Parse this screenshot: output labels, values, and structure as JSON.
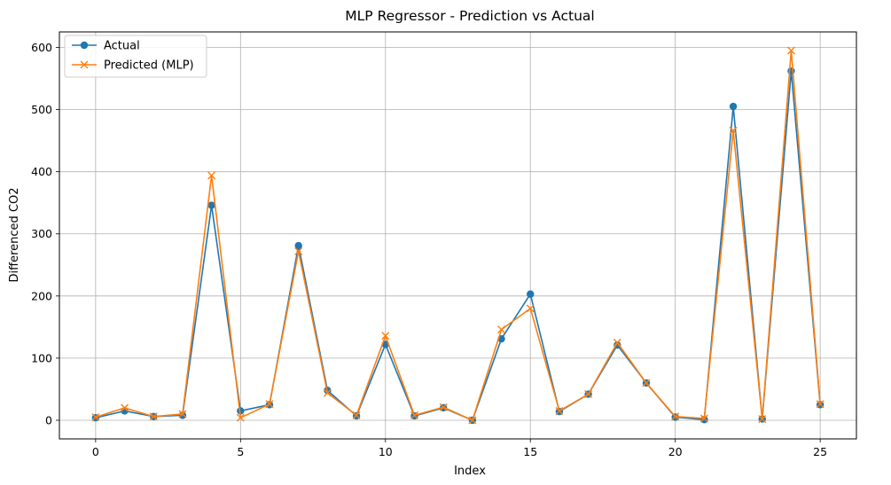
{
  "chart_data": {
    "type": "line",
    "title": "MLP Regressor - Prediction vs Actual",
    "xlabel": "Index",
    "ylabel": "Differenced CO2",
    "xlim": [
      -1.25,
      26.25
    ],
    "ylim": [
      -30,
      625
    ],
    "xticks": [
      0,
      5,
      10,
      15,
      20,
      25
    ],
    "yticks": [
      0,
      100,
      200,
      300,
      400,
      500,
      600
    ],
    "grid": true,
    "legend_position": "top-left",
    "x": [
      0,
      1,
      2,
      3,
      4,
      5,
      6,
      7,
      8,
      9,
      10,
      11,
      12,
      13,
      14,
      15,
      16,
      17,
      18,
      19,
      20,
      21,
      22,
      23,
      24,
      25
    ],
    "series": [
      {
        "name": "Actual",
        "color": "#1f77b4",
        "marker": "circle",
        "values": [
          4,
          15,
          6,
          8,
          346,
          15,
          25,
          281,
          48,
          7,
          122,
          7,
          20,
          0,
          131,
          203,
          14,
          42,
          121,
          60,
          5,
          1,
          505,
          2,
          562,
          25
        ]
      },
      {
        "name": "Predicted (MLP)",
        "color": "#ff7f0e",
        "marker": "x",
        "values": [
          5,
          20,
          6,
          10,
          394,
          4,
          26,
          272,
          44,
          8,
          136,
          8,
          21,
          0,
          146,
          180,
          15,
          42,
          125,
          60,
          6,
          3,
          466,
          2,
          595,
          26
        ]
      }
    ]
  }
}
